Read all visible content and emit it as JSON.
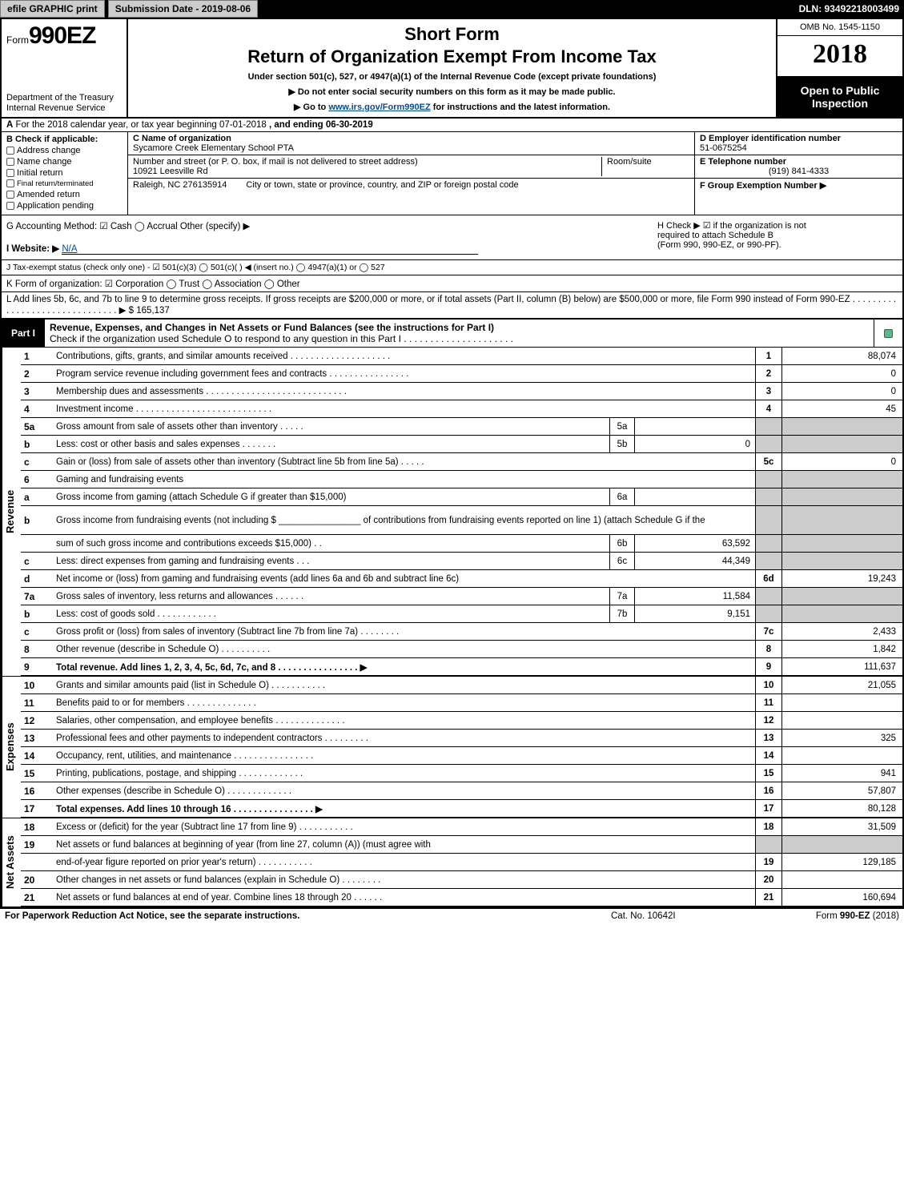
{
  "topbar": {
    "efile_btn": "efile GRAPHIC print",
    "submission": "Submission Date - 2019-08-06",
    "dln": "DLN: 93492218003499"
  },
  "header": {
    "form_prefix": "Form",
    "form_no": "990EZ",
    "dept1": "Department of the Treasury",
    "dept2": "Internal Revenue Service",
    "short_form": "Short Form",
    "title": "Return of Organization Exempt From Income Tax",
    "sub1": "Under section 501(c), 527, or 4947(a)(1) of the Internal Revenue Code (except private foundations)",
    "sub2": "▶ Do not enter social security numbers on this form as it may be made public.",
    "sub3_prefix": "▶ Go to ",
    "sub3_link": "www.irs.gov/Form990EZ",
    "sub3_suffix": " for instructions and the latest information.",
    "omb": "OMB No. 1545-1150",
    "year": "2018",
    "open1": "Open to Public",
    "open2": "Inspection"
  },
  "sectA": {
    "label_a": "A",
    "text1": "For the 2018 calendar year, or tax year beginning 07-01-2018",
    "text2": ", and ending 06-30-2019"
  },
  "colB": {
    "header": "B  Check if applicable:",
    "items": [
      "Address change",
      "Name change",
      "Initial return",
      "Final return/terminated",
      "Amended return",
      "Application pending"
    ]
  },
  "colC": {
    "c_label": "C Name of organization",
    "c_val": "Sycamore Creek Elementary School PTA",
    "addr_label": "Number and street (or P. O. box, if mail is not delivered to street address)",
    "addr_val": "10921 Leesville Rd",
    "room_label": "Room/suite",
    "city_label": "City or town, state or province, country, and ZIP or foreign postal code",
    "city_val": "Raleigh, NC  276135914"
  },
  "colDEF": {
    "d_label": "D Employer identification number",
    "d_val": "51-0675254",
    "e_label": "E Telephone number",
    "e_val": "(919) 841-4333",
    "f_label": "F Group Exemption Number   ▶"
  },
  "rowG": {
    "g": "G Accounting Method:   ☑ Cash   ◯ Accrual   Other (specify) ▶",
    "h1": "H  Check ▶  ☑  if the organization is not",
    "h2": "required to attach Schedule B",
    "h3": "(Form 990, 990-EZ, or 990-PF)."
  },
  "rowI": {
    "label": "I Website: ▶",
    "val": "N/A"
  },
  "rowJ": "J Tax-exempt status (check only one) -  ☑ 501(c)(3)  ◯ 501(c)(  ) ◀ (insert no.)  ◯ 4947(a)(1) or  ◯ 527",
  "rowK": "K Form of organization:   ☑ Corporation   ◯ Trust   ◯ Association   ◯ Other",
  "rowL": {
    "text": "L Add lines 5b, 6c, and 7b to line 9 to determine gross receipts. If gross receipts are $200,000 or more, or if total assets (Part II, column (B) below) are $500,000 or more, file Form 990 instead of Form 990-EZ  .  .  .  .  .  .  .  .  .  .  .  .  .  .  .  .  .  .  .  .  .  .  .  .  .  .  .  .  .  .  . ▶ $",
    "amount": "165,137"
  },
  "part1": {
    "tag": "Part I",
    "title": "Revenue, Expenses, and Changes in Net Assets or Fund Balances (see the instructions for Part I)",
    "subtitle": "Check if the organization used Schedule O to respond to any question in this Part I .  .  .  .  .  .  .  .  .  .  .  .  .  .  .  .  .  .  .  .  ."
  },
  "sections": {
    "revenue": "Revenue",
    "expenses": "Expenses",
    "netassets": "Net Assets"
  },
  "rows": [
    {
      "n": "1",
      "desc": "Contributions, gifts, grants, and similar amounts received  .  .  .  .  .  .  .  .  .  .  .  .  .  .  .  .  .  .  .  .",
      "rn": "1",
      "rv": "88,074"
    },
    {
      "n": "2",
      "desc": "Program service revenue including government fees and contracts  .  .  .  .  .  .  .  .  .  .  .  .  .  .  .  .",
      "rn": "2",
      "rv": "0"
    },
    {
      "n": "3",
      "desc": "Membership dues and assessments  .  .  .  .  .  .  .  .  .  .  .  .  .  .  .  .  .  .  .  .  .  .  .  .  .  .  .  .",
      "rn": "3",
      "rv": "0"
    },
    {
      "n": "4",
      "desc": "Investment income  .  .  .  .  .  .  .  .  .  .  .  .  .  .  .  .  .  .  .  .  .  .  .  .  .  .  .",
      "rn": "4",
      "rv": "45"
    },
    {
      "n": "5a",
      "desc": "Gross amount from sale of assets other than inventory  .  .  .  .  .",
      "mn": "5a",
      "mv": "",
      "grey": true
    },
    {
      "n": "b",
      "desc": "Less: cost or other basis and sales expenses  .  .  .  .  .  .  .",
      "mn": "5b",
      "mv": "0",
      "grey": true
    },
    {
      "n": "c",
      "desc": "Gain or (loss) from sale of assets other than inventory (Subtract line 5b from line 5a)         .  .  .  .  .",
      "rn": "5c",
      "rv": "0"
    },
    {
      "n": "6",
      "desc": "Gaming and fundraising events",
      "grey": true,
      "nomid": true
    },
    {
      "n": "a",
      "desc": "Gross income from gaming (attach Schedule G if greater than $15,000)",
      "mn": "6a",
      "mv": "",
      "grey": true
    },
    {
      "n": "b",
      "desc": "Gross income from fundraising events (not including $ ________________ of contributions from fundraising events reported on line 1) (attach Schedule G if the",
      "grey": true,
      "nomid": true,
      "tall": true
    },
    {
      "n": "",
      "desc": "sum of such gross income and contributions exceeds $15,000)       .   .",
      "mn": "6b",
      "mv": "63,592",
      "grey": true
    },
    {
      "n": "c",
      "desc": "Less: direct expenses from gaming and fundraising events           .   .   .",
      "mn": "6c",
      "mv": "44,349",
      "grey": true
    },
    {
      "n": "d",
      "desc": "Net income or (loss) from gaming and fundraising events (add lines 6a and 6b and subtract line 6c)",
      "rn": "6d",
      "rv": "19,243"
    },
    {
      "n": "7a",
      "desc": "Gross sales of inventory, less returns and allowances            .  .  .  .  .  .",
      "mn": "7a",
      "mv": "11,584",
      "grey": true
    },
    {
      "n": "b",
      "desc": "Less: cost of goods sold                               .  .  .  .  .  .  .  .  .  .  .  .",
      "mn": "7b",
      "mv": "9,151",
      "grey": true
    },
    {
      "n": "c",
      "desc": "Gross profit or (loss) from sales of inventory (Subtract line 7b from line 7a)          .  .  .  .  .  .  .  .",
      "rn": "7c",
      "rv": "2,433"
    },
    {
      "n": "8",
      "desc": "Other revenue (describe in Schedule O)                                    .  .  .  .  .  .  .  .  .  .",
      "rn": "8",
      "rv": "1,842"
    },
    {
      "n": "9",
      "desc": "Total revenue. Add lines 1, 2, 3, 4, 5c, 6d, 7c, and 8        .  .  .  .  .  .  .  .  .  .  .  .  .  .  .  . ▶",
      "rn": "9",
      "rv": "111,637",
      "bold": true
    }
  ],
  "exp_rows": [
    {
      "n": "10",
      "desc": "Grants and similar amounts paid (list in Schedule O)                   .  .  .  .  .  .  .  .  .  .  .",
      "rn": "10",
      "rv": "21,055"
    },
    {
      "n": "11",
      "desc": "Benefits paid to or for members                          .  .  .  .  .  .  .  .  .  .  .  .  .  .",
      "rn": "11",
      "rv": ""
    },
    {
      "n": "12",
      "desc": "Salaries, other compensation, and employee benefits         .  .  .  .  .  .  .  .  .  .  .  .  .  .",
      "rn": "12",
      "rv": ""
    },
    {
      "n": "13",
      "desc": "Professional fees and other payments to independent contractors         .  .  .  .  .  .  .  .  .",
      "rn": "13",
      "rv": "325"
    },
    {
      "n": "14",
      "desc": "Occupancy, rent, utilities, and maintenance            .  .  .  .  .  .  .  .  .  .  .  .  .  .  .  .",
      "rn": "14",
      "rv": ""
    },
    {
      "n": "15",
      "desc": "Printing, publications, postage, and shipping                  .  .  .  .  .  .  .  .  .  .  .  .  .",
      "rn": "15",
      "rv": "941"
    },
    {
      "n": "16",
      "desc": "Other expenses (describe in Schedule O)                     .  .  .  .  .  .  .  .  .  .  .  .  .",
      "rn": "16",
      "rv": "57,807"
    },
    {
      "n": "17",
      "desc": "Total expenses. Add lines 10 through 16             .  .  .  .  .  .  .  .  .  .  .  .  .  .  .  . ▶",
      "rn": "17",
      "rv": "80,128",
      "bold": true
    }
  ],
  "na_rows": [
    {
      "n": "18",
      "desc": "Excess or (deficit) for the year (Subtract line 17 from line 9)               .  .  .  .  .  .  .  .  .  .  .",
      "rn": "18",
      "rv": "31,509"
    },
    {
      "n": "19",
      "desc": "Net assets or fund balances at beginning of year (from line 27, column (A)) (must agree with",
      "grey": true,
      "nomid": true
    },
    {
      "n": "",
      "desc": "end-of-year figure reported on prior year's return)                 .  .  .  .  .  .  .  .  .  .  .",
      "rn": "19",
      "rv": "129,185"
    },
    {
      "n": "20",
      "desc": "Other changes in net assets or fund balances (explain in Schedule O)         .  .  .  .  .  .  .  .",
      "rn": "20",
      "rv": ""
    },
    {
      "n": "21",
      "desc": "Net assets or fund balances at end of year. Combine lines 18 through 20           .  .  .  .  .  .",
      "rn": "21",
      "rv": "160,694"
    }
  ],
  "footer": {
    "left": "For Paperwork Reduction Act Notice, see the separate instructions.",
    "mid": "Cat. No. 10642I",
    "right": "Form 990-EZ (2018)"
  },
  "colors": {
    "black": "#000000",
    "grey": "#cccccc",
    "link": "#004b9b"
  }
}
